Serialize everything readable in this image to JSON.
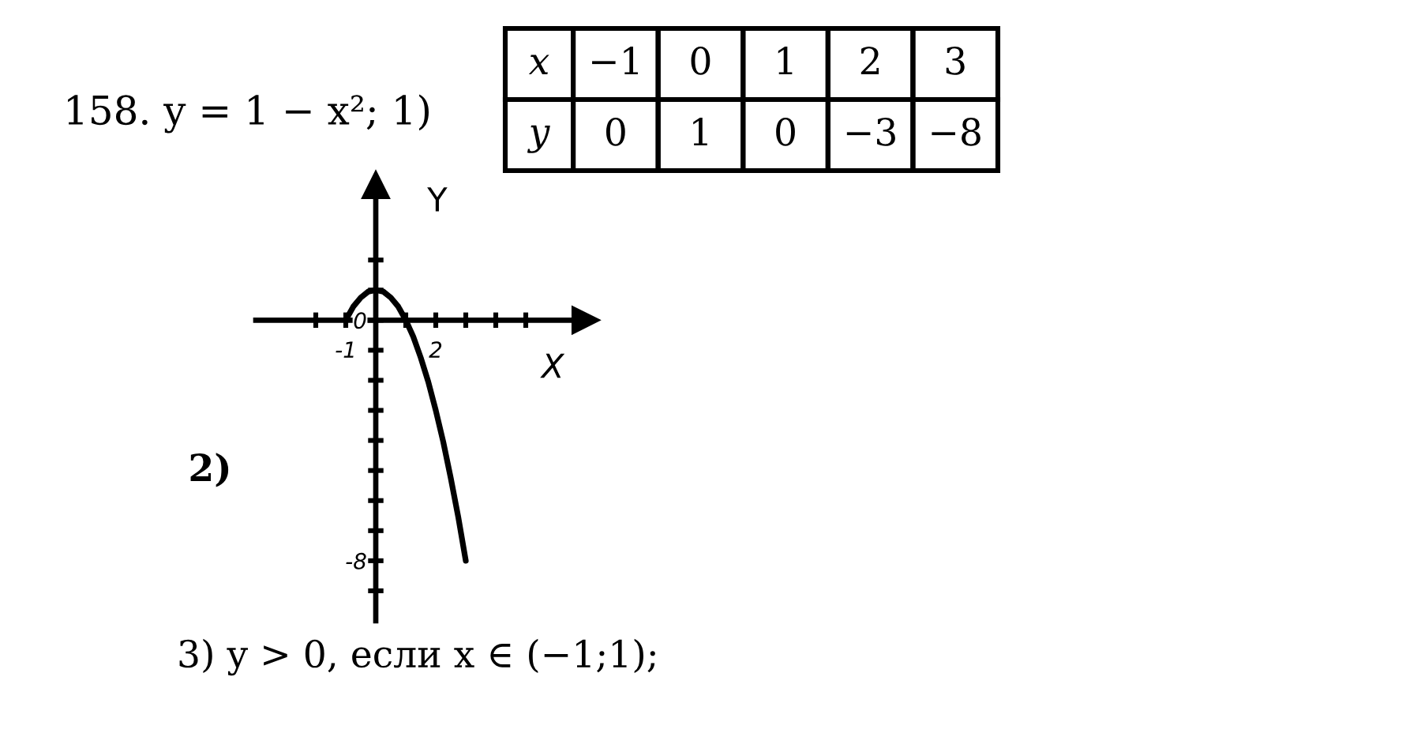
{
  "chart_data": {
    "type": "line",
    "title": "158. y = 1 − x²; 1)",
    "xlabel": "X",
    "ylabel": "Y",
    "x": [
      -1,
      -0.75,
      -0.5,
      -0.25,
      0,
      0.25,
      0.5,
      0.75,
      1,
      1.25,
      1.5,
      1.75,
      2,
      2.25,
      2.5,
      2.75,
      3
    ],
    "series": [
      {
        "color": "#000000",
        "values": [
          0,
          0.45,
          0.75,
          0.95,
          1,
          0.95,
          0.75,
          0.45,
          0,
          -0.55,
          -1.25,
          -2.05,
          -3,
          -4.05,
          -5.25,
          -6.55,
          -8
        ]
      }
    ],
    "xlim": [
      -4,
      7
    ],
    "ylim": [
      -10,
      4.5
    ],
    "xticks": [
      {
        "value": -2,
        "label": null
      },
      {
        "value": -1,
        "label": "-1"
      },
      {
        "value": 1,
        "label": null
      },
      {
        "value": 2,
        "label": "2"
      },
      {
        "value": 3,
        "label": null
      },
      {
        "value": 4,
        "label": null
      },
      {
        "value": 5,
        "label": null
      }
    ],
    "yticks": [
      {
        "value": 2,
        "label": null
      },
      {
        "value": 1,
        "label": null
      },
      {
        "value": 0,
        "label": "0"
      },
      {
        "value": -1,
        "label": null
      },
      {
        "value": -2,
        "label": null
      },
      {
        "value": -3,
        "label": null
      },
      {
        "value": -4,
        "label": null
      },
      {
        "value": -5,
        "label": null
      },
      {
        "value": -6,
        "label": null
      },
      {
        "value": -7,
        "label": null
      },
      {
        "value": -8,
        "label": "-8"
      },
      {
        "value": -9,
        "label": null
      }
    ],
    "annotations": [
      "x",
      "−1",
      "0",
      "1",
      "2",
      "3",
      "y",
      "0",
      "1",
      "0",
      "−3",
      "−8",
      "2)",
      "3) y > 0, если x ∈ (−1;1);"
    ]
  }
}
